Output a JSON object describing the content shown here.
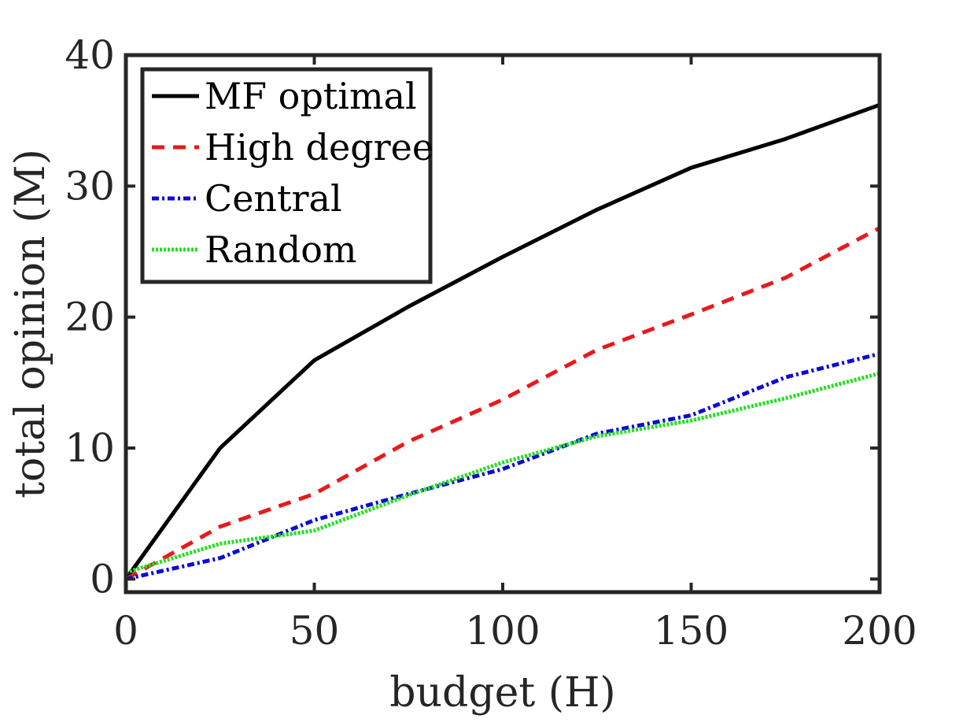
{
  "chart_data": {
    "type": "line",
    "title": "",
    "xlabel": "budget (H)",
    "ylabel": "total opinion (M)",
    "xlim": [
      0,
      200
    ],
    "ylim": [
      -1,
      40
    ],
    "xticks": [
      0,
      50,
      100,
      150,
      200
    ],
    "yticks": [
      0,
      10,
      20,
      30,
      40
    ],
    "legend_position": "top-left",
    "grid": false,
    "series": [
      {
        "name": "MF optimal",
        "style": "solid",
        "color": "#000000",
        "x": [
          0,
          25,
          50,
          75,
          100,
          125,
          150,
          175,
          200
        ],
        "y": [
          0,
          10,
          16.7,
          20.8,
          24.6,
          28.2,
          31.4,
          33.6,
          36.2
        ]
      },
      {
        "name": "High degree",
        "style": "dashed",
        "color": "#e8191b",
        "x": [
          0,
          25,
          50,
          75,
          100,
          125,
          150,
          175,
          200
        ],
        "y": [
          0,
          4,
          6.5,
          10.5,
          13.7,
          17.5,
          20.2,
          23,
          26.8
        ]
      },
      {
        "name": "Central",
        "style": "dashdot",
        "color": "#0a0ad8",
        "x": [
          0,
          25,
          50,
          75,
          100,
          125,
          150,
          175,
          200
        ],
        "y": [
          0,
          1.6,
          4.5,
          6.5,
          8.4,
          11.1,
          12.5,
          15.4,
          17.2
        ]
      },
      {
        "name": "Random",
        "style": "dotted",
        "color": "#22e01d",
        "x": [
          0,
          25,
          50,
          75,
          100,
          125,
          150,
          175,
          200
        ],
        "y": [
          0.5,
          2.7,
          3.7,
          6.4,
          8.9,
          10.9,
          12.1,
          13.8,
          15.7
        ]
      }
    ]
  }
}
